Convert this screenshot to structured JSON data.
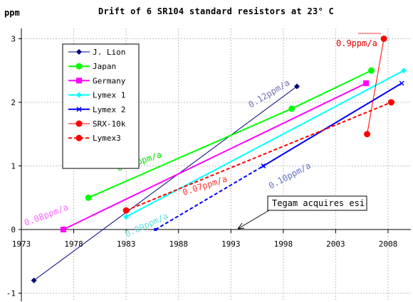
{
  "chart_data": {
    "type": "line",
    "title": "Drift of 6 SR104 standard resistors at 23° C",
    "ylabel": "ppm",
    "xlabel": "",
    "xlim": [
      1973,
      2010
    ],
    "ylim": [
      -1,
      3.2
    ],
    "x_ticks": [
      "1973",
      "1978",
      "1983",
      "1988",
      "1993",
      "1998",
      "2003",
      "2008"
    ],
    "y_ticks": [
      "-1",
      "0",
      "1",
      "2",
      "3"
    ],
    "grid": true,
    "legend_position": "upper-left",
    "series": [
      {
        "name": "J. Lion",
        "color": "#000080",
        "marker": "diamond",
        "dashed": false,
        "thin": true,
        "points": [
          [
            1974.2,
            -0.8
          ],
          [
            1999.3,
            2.25
          ]
        ]
      },
      {
        "name": "Japan",
        "color": "#00ff00",
        "marker": "circle",
        "dashed": false,
        "thin": false,
        "points": [
          [
            1979.4,
            0.5
          ],
          [
            1998.8,
            1.9
          ],
          [
            2006.4,
            2.5
          ]
        ]
      },
      {
        "name": "Germany",
        "color": "#ff00ff",
        "marker": "square",
        "dashed": false,
        "thin": false,
        "points": [
          [
            1977.0,
            0.0
          ],
          [
            2005.9,
            2.3
          ]
        ]
      },
      {
        "name": "Lymex 1",
        "color": "#00ffff",
        "marker": "diamond",
        "dashed": false,
        "thin": false,
        "points": [
          [
            1983.0,
            0.2
          ],
          [
            2009.5,
            2.5
          ]
        ]
      },
      {
        "name": "Lymex 2",
        "color": "#0000ff",
        "marker": "x",
        "dashed": false,
        "thin": false,
        "points": [
          [
            1996.1,
            1.0
          ],
          [
            2009.3,
            2.3
          ]
        ]
      },
      {
        "name": "SRX-10k",
        "color": "#ff0000",
        "marker": "circle",
        "dashed": false,
        "thin": true,
        "points": [
          [
            2006.0,
            1.5
          ],
          [
            2007.6,
            3.0
          ]
        ]
      },
      {
        "name": "Lymex3",
        "color": "#ff0000",
        "marker": "circle",
        "dashed": true,
        "thin": false,
        "points": [
          [
            1983.0,
            0.3
          ],
          [
            2008.3,
            2.0
          ]
        ]
      },
      {
        "name": "",
        "color": "#0000ff",
        "marker": "square-small",
        "dashed": true,
        "thin": false,
        "points": [
          [
            1985.8,
            0.0
          ],
          [
            1996.1,
            1.0
          ]
        ]
      }
    ],
    "annotations": [
      {
        "text": "0.12ppm/a",
        "color": "#7070b0"
      },
      {
        "text": "0.9ppm/a",
        "color": "#e00000"
      },
      {
        "text": "0.07ppm/a",
        "color": "#00e000"
      },
      {
        "text": "0.07ppm/a",
        "color": "#ff3333"
      },
      {
        "text": "0.08ppm/a",
        "color": "#ff66ff"
      },
      {
        "text": "0.09ppm/a",
        "color": "#66dddd"
      },
      {
        "text": "0.10ppm/a",
        "color": "#6070c0"
      },
      {
        "text": "Tegam acquires esi",
        "color": "#000000"
      }
    ]
  }
}
